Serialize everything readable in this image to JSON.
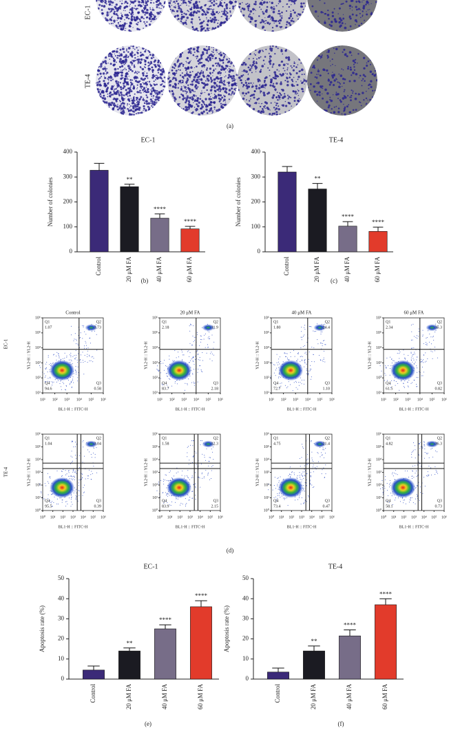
{
  "figure": {
    "panel_labels": [
      "(a)",
      "(b)",
      "(c)",
      "(d)",
      "(e)",
      "(f)"
    ],
    "row_labels": [
      "EC-1",
      "TE-4"
    ]
  },
  "chart_data": [
    {
      "type": "bar",
      "title": "EC-1",
      "ylabel": "Number of colonies",
      "categories": [
        "Control",
        "20 μM FA",
        "40 μM FA",
        "60 μM FA"
      ],
      "values": [
        327,
        261,
        135,
        92
      ],
      "errors": [
        28,
        10,
        17,
        10
      ],
      "annotations": [
        null,
        "**",
        "****",
        "****"
      ],
      "colors": [
        "#3b2a78",
        "#1b1b22",
        "#776d88",
        "#e23b2b"
      ],
      "ylim": [
        0,
        400
      ],
      "yticks": [
        0,
        100,
        200,
        300,
        400
      ]
    },
    {
      "type": "bar",
      "title": "TE-4",
      "ylabel": "Number of colonies",
      "categories": [
        "Control",
        "20 μM FA",
        "40 μM FA",
        "60 μM FA"
      ],
      "values": [
        320,
        252,
        103,
        82
      ],
      "errors": [
        22,
        22,
        18,
        17
      ],
      "annotations": [
        null,
        "**",
        "****",
        "****"
      ],
      "colors": [
        "#3b2a78",
        "#1b1b22",
        "#776d88",
        "#e23b2b"
      ],
      "ylim": [
        0,
        400
      ],
      "yticks": [
        0,
        100,
        200,
        300,
        400
      ]
    },
    {
      "type": "flow",
      "title": "Control",
      "xlabel": "BL1-H :: FITC-H",
      "ylabel": "YL2-H :: YL2-H",
      "categories": [
        "Q1",
        "Q2",
        "Q3",
        "Q4"
      ],
      "values": [
        1.07,
        3.73,
        0.58,
        94.6
      ],
      "value_labels": [
        "1.07",
        "3.73",
        "0.58",
        "94.6"
      ],
      "xlim": [
        10,
        1000000
      ],
      "ylim": [
        10,
        1000000
      ],
      "log": true,
      "xticks": [
        {
          "value": 10,
          "label": "10¹"
        },
        {
          "value": 100,
          "label": "10²"
        },
        {
          "value": 1000,
          "label": "10³"
        },
        {
          "value": 10000,
          "label": "10⁴"
        },
        {
          "value": 100000,
          "label": "10⁵"
        },
        {
          "value": 1000000,
          "label": "10⁶"
        }
      ],
      "yticks": [
        {
          "value": 10,
          "label": "10¹"
        },
        {
          "value": 100,
          "label": "10²"
        },
        {
          "value": 1000,
          "label": "10³"
        },
        {
          "value": 10000,
          "label": "10⁴"
        },
        {
          "value": 100000,
          "label": "10⁵"
        },
        {
          "value": 1000000,
          "label": "10⁶"
        }
      ]
    },
    {
      "type": "flow",
      "title": "20 μM FA",
      "xlabel": "BL1-H :: FITC-H",
      "ylabel": "YL2-H :: YL2-H",
      "categories": [
        "Q1",
        "Q2",
        "Q3",
        "Q4"
      ],
      "values": [
        2.18,
        11.9,
        2.18,
        83.7
      ],
      "value_labels": [
        "2.18",
        "11.9",
        "2.18",
        "83.7"
      ],
      "xlim": [
        10,
        1000000
      ],
      "ylim": [
        10,
        1000000
      ],
      "log": true,
      "xticks": [
        {
          "value": 10,
          "label": "10¹"
        },
        {
          "value": 100,
          "label": "10²"
        },
        {
          "value": 1000,
          "label": "10³"
        },
        {
          "value": 10000,
          "label": "10⁴"
        },
        {
          "value": 100000,
          "label": "10⁵"
        },
        {
          "value": 1000000,
          "label": "10⁶"
        }
      ],
      "yticks": [
        {
          "value": 10,
          "label": "10¹"
        },
        {
          "value": 100,
          "label": "10²"
        },
        {
          "value": 1000,
          "label": "10³"
        },
        {
          "value": 10000,
          "label": "10⁴"
        },
        {
          "value": 100000,
          "label": "10⁵"
        },
        {
          "value": 1000000,
          "label": "10⁶"
        }
      ]
    },
    {
      "type": "flow",
      "title": "40 μM FA",
      "xlabel": "BL1-H :: FITC-H",
      "ylabel": "YL2-H :: YL2-H",
      "categories": [
        "Q1",
        "Q2",
        "Q3",
        "Q4"
      ],
      "values": [
        1.8,
        24.4,
        1.1,
        72.7
      ],
      "value_labels": [
        "1.80",
        "24.4",
        "1.10",
        "72.7"
      ],
      "xlim": [
        10,
        1000000
      ],
      "ylim": [
        10,
        1000000
      ],
      "log": true,
      "xticks": [
        {
          "value": 10,
          "label": "10¹"
        },
        {
          "value": 100,
          "label": "10²"
        },
        {
          "value": 1000,
          "label": "10³"
        },
        {
          "value": 10000,
          "label": "10⁴"
        },
        {
          "value": 100000,
          "label": "10⁵"
        },
        {
          "value": 1000000,
          "label": "10⁶"
        }
      ],
      "yticks": [
        {
          "value": 10,
          "label": "10¹"
        },
        {
          "value": 100,
          "label": "10²"
        },
        {
          "value": 1000,
          "label": "10³"
        },
        {
          "value": 10000,
          "label": "10⁴"
        },
        {
          "value": 100000,
          "label": "10⁵"
        },
        {
          "value": 1000000,
          "label": "10⁶"
        }
      ]
    },
    {
      "type": "flow",
      "title": "60 μM FA",
      "xlabel": "BL1-H :: FITC-H",
      "ylabel": "YL2-H :: YL2-H",
      "categories": [
        "Q1",
        "Q2",
        "Q3",
        "Q4"
      ],
      "values": [
        2.34,
        35.3,
        0.82,
        61.5
      ],
      "value_labels": [
        "2.34",
        "35.3",
        "0.82",
        "61.5"
      ],
      "xlim": [
        10,
        1000000
      ],
      "ylim": [
        10,
        1000000
      ],
      "log": true,
      "xticks": [
        {
          "value": 10,
          "label": "10¹"
        },
        {
          "value": 100,
          "label": "10²"
        },
        {
          "value": 1000,
          "label": "10³"
        },
        {
          "value": 10000,
          "label": "10⁴"
        },
        {
          "value": 100000,
          "label": "10⁵"
        },
        {
          "value": 1000000,
          "label": "10⁶"
        }
      ],
      "yticks": [
        {
          "value": 10,
          "label": "10¹"
        },
        {
          "value": 100,
          "label": "10²"
        },
        {
          "value": 1000,
          "label": "10³"
        },
        {
          "value": 10000,
          "label": "10⁴"
        },
        {
          "value": 100000,
          "label": "10⁵"
        },
        {
          "value": 1000000,
          "label": "10⁶"
        }
      ]
    },
    {
      "type": "flow",
      "xlabel": "BL1-H :: FITC-H",
      "ylabel": "YL2-H :: YL2-H",
      "categories": [
        "Q1",
        "Q2",
        "Q3",
        "Q4"
      ],
      "values": [
        1.04,
        3.04,
        0.39,
        95.5
      ],
      "value_labels": [
        "1.04",
        "3.04",
        "0.39",
        "95.5"
      ],
      "xlim": [
        1,
        1000000
      ],
      "ylim": [
        1,
        1000000
      ],
      "log": true,
      "xticks": [
        {
          "value": 1,
          "label": "10⁰"
        },
        {
          "value": 10,
          "label": "10¹"
        },
        {
          "value": 100,
          "label": "10²"
        },
        {
          "value": 1000,
          "label": "10³"
        },
        {
          "value": 10000,
          "label": "10⁴"
        },
        {
          "value": 100000,
          "label": "10⁵"
        },
        {
          "value": 1000000,
          "label": "10⁶"
        }
      ],
      "yticks": [
        {
          "value": 1,
          "label": "10⁰"
        },
        {
          "value": 10,
          "label": "10¹"
        },
        {
          "value": 100,
          "label": "10²"
        },
        {
          "value": 1000,
          "label": "10³"
        },
        {
          "value": 10000,
          "label": "10⁴"
        },
        {
          "value": 100000,
          "label": "10⁵"
        },
        {
          "value": 1000000,
          "label": "10⁶"
        }
      ]
    },
    {
      "type": "flow",
      "xlabel": "BL1-H :: FITC-H",
      "ylabel": "YL2-H :: YL2-H",
      "categories": [
        "Q1",
        "Q2",
        "Q3",
        "Q4"
      ],
      "values": [
        1.58,
        12.3,
        2.15,
        83.9
      ],
      "value_labels": [
        "1.58",
        "12.3",
        "2.15",
        "83.9"
      ],
      "xlim": [
        1,
        1000000
      ],
      "ylim": [
        1,
        1000000
      ],
      "log": true,
      "xticks": [
        {
          "value": 1,
          "label": "10⁰"
        },
        {
          "value": 10,
          "label": "10¹"
        },
        {
          "value": 100,
          "label": "10²"
        },
        {
          "value": 1000,
          "label": "10³"
        },
        {
          "value": 10000,
          "label": "10⁴"
        },
        {
          "value": 100000,
          "label": "10⁵"
        },
        {
          "value": 1000000,
          "label": "10⁶"
        }
      ],
      "yticks": [
        {
          "value": 1,
          "label": "10⁰"
        },
        {
          "value": 10,
          "label": "10¹"
        },
        {
          "value": 100,
          "label": "10²"
        },
        {
          "value": 1000,
          "label": "10³"
        },
        {
          "value": 10000,
          "label": "10⁴"
        },
        {
          "value": 100000,
          "label": "10⁵"
        },
        {
          "value": 1000000,
          "label": "10⁶"
        }
      ]
    },
    {
      "type": "flow",
      "xlabel": "BL1-H :: FITC-H",
      "ylabel": "YL2-H :: YL2-H",
      "categories": [
        "Q1",
        "Q2",
        "Q3",
        "Q4"
      ],
      "values": [
        4.75,
        21.4,
        0.47,
        73.4
      ],
      "value_labels": [
        "4.75",
        "21.4",
        "0.47",
        "73.4"
      ],
      "xlim": [
        1,
        1000000
      ],
      "ylim": [
        1,
        1000000
      ],
      "log": true,
      "xticks": [
        {
          "value": 1,
          "label": "10⁰"
        },
        {
          "value": 10,
          "label": "10¹"
        },
        {
          "value": 100,
          "label": "10²"
        },
        {
          "value": 1000,
          "label": "10³"
        },
        {
          "value": 10000,
          "label": "10⁴"
        },
        {
          "value": 100000,
          "label": "10⁵"
        },
        {
          "value": 1000000,
          "label": "10⁶"
        }
      ],
      "yticks": [
        {
          "value": 1,
          "label": "10⁰"
        },
        {
          "value": 10,
          "label": "10¹"
        },
        {
          "value": 100,
          "label": "10²"
        },
        {
          "value": 1000,
          "label": "10³"
        },
        {
          "value": 10000,
          "label": "10⁴"
        },
        {
          "value": 100000,
          "label": "10⁵"
        },
        {
          "value": 1000000,
          "label": "10⁶"
        }
      ]
    },
    {
      "type": "flow",
      "xlabel": "BL1-H :: FITC-H",
      "ylabel": "YL2-H :: YL2-H",
      "categories": [
        "Q1",
        "Q2",
        "Q3",
        "Q4"
      ],
      "values": [
        4.82,
        36.3,
        0.73,
        58.1
      ],
      "value_labels": [
        "4.82",
        "36.3",
        "0.73",
        "58.1"
      ],
      "xlim": [
        1,
        1000000
      ],
      "ylim": [
        1,
        1000000
      ],
      "log": true,
      "xticks": [
        {
          "value": 1,
          "label": "10⁰"
        },
        {
          "value": 10,
          "label": "10¹"
        },
        {
          "value": 100,
          "label": "10²"
        },
        {
          "value": 1000,
          "label": "10³"
        },
        {
          "value": 10000,
          "label": "10⁴"
        },
        {
          "value": 100000,
          "label": "10⁵"
        },
        {
          "value": 1000000,
          "label": "10⁶"
        }
      ],
      "yticks": [
        {
          "value": 1,
          "label": "10⁰"
        },
        {
          "value": 10,
          "label": "10¹"
        },
        {
          "value": 100,
          "label": "10²"
        },
        {
          "value": 1000,
          "label": "10³"
        },
        {
          "value": 10000,
          "label": "10⁴"
        },
        {
          "value": 100000,
          "label": "10⁵"
        },
        {
          "value": 1000000,
          "label": "10⁶"
        }
      ]
    },
    {
      "type": "bar",
      "title": "EC-1",
      "ylabel": "Apoptosis rate (%)",
      "categories": [
        "Control",
        "20 μM FA",
        "40 μM FA",
        "60 μM FA"
      ],
      "values": [
        4.5,
        14,
        25,
        36
      ],
      "errors": [
        2,
        1.5,
        2,
        3
      ],
      "annotations": [
        null,
        "**",
        "****",
        "****"
      ],
      "colors": [
        "#3b2a78",
        "#1b1b22",
        "#776d88",
        "#e23b2b"
      ],
      "ylim": [
        0,
        50
      ],
      "yticks": [
        0,
        10,
        20,
        30,
        40,
        50
      ]
    },
    {
      "type": "bar",
      "title": "TE-4",
      "ylabel": "Apoptosis rate (%)",
      "categories": [
        "Control",
        "20 μM FA",
        "40 μM FA",
        "60 μM FA"
      ],
      "values": [
        3.5,
        14,
        21.5,
        37
      ],
      "errors": [
        2,
        2.5,
        3,
        3
      ],
      "annotations": [
        null,
        "**",
        "****",
        "****"
      ],
      "colors": [
        "#3b2a78",
        "#1b1b22",
        "#776d88",
        "#e23b2b"
      ],
      "ylim": [
        0,
        50
      ],
      "yticks": [
        0,
        10,
        20,
        30,
        40,
        50
      ]
    }
  ]
}
